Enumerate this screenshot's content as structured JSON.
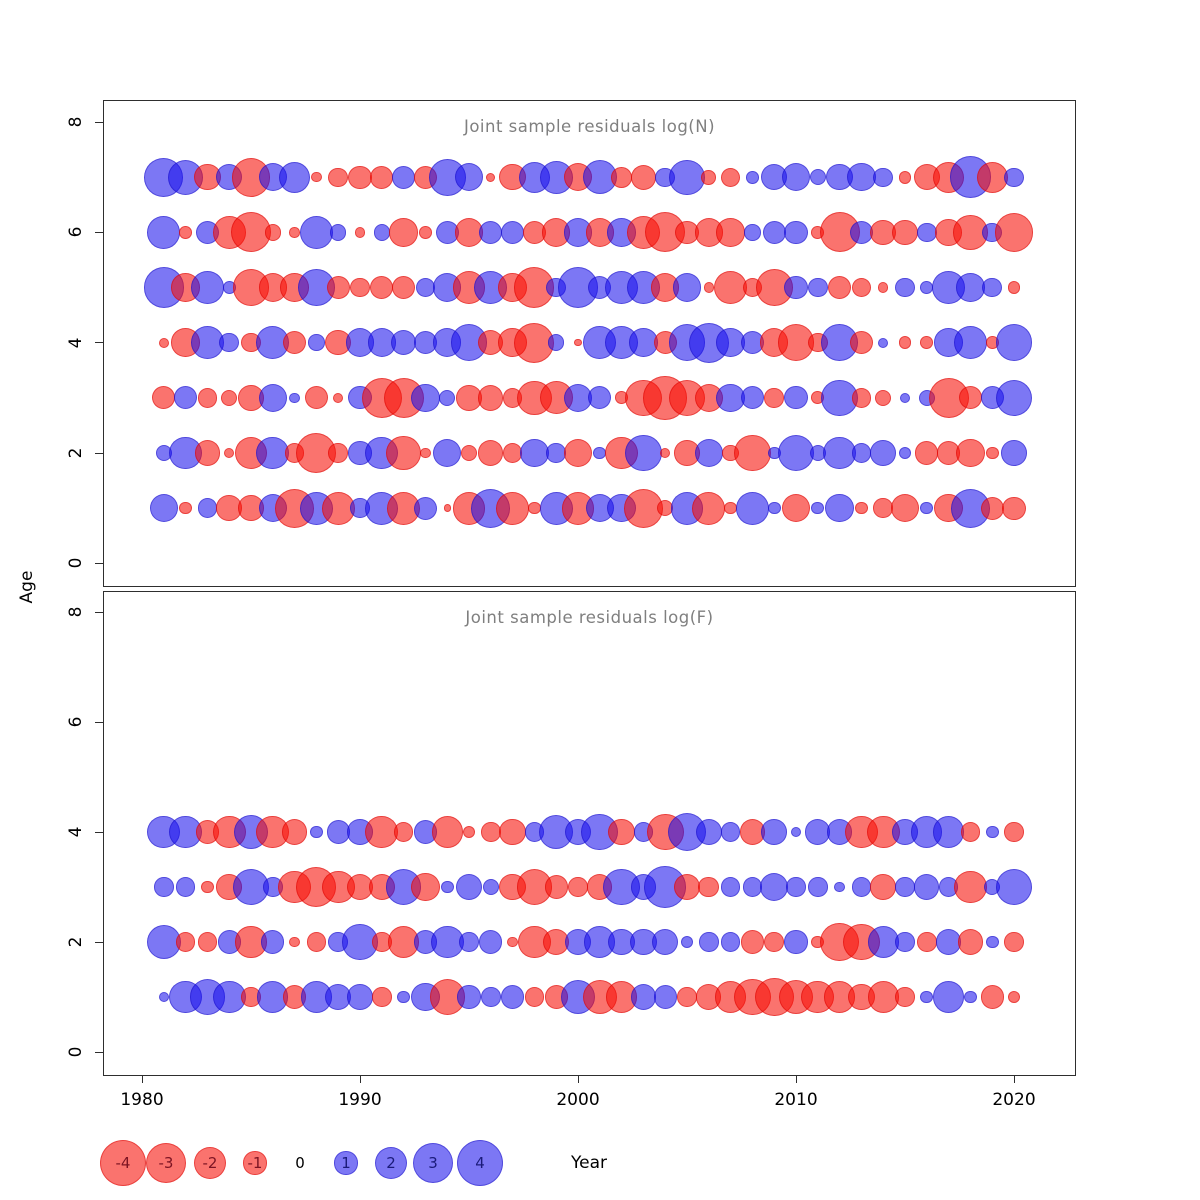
{
  "figure_titles": {
    "top": "Joint sample residuals log(N)",
    "bottom": "Joint sample residuals log(F)"
  },
  "axes": {
    "x": {
      "label": "Year",
      "ticks": [
        1980,
        1990,
        2000,
        2010,
        2020
      ]
    },
    "y": {
      "label": "Age",
      "ticks": [
        0,
        2,
        4,
        6,
        8
      ]
    }
  },
  "legend": {
    "values": [
      -4,
      -3,
      -2,
      -1,
      0,
      1,
      2,
      3,
      4
    ],
    "labels": [
      "-4",
      "-3",
      "-2",
      "-1",
      "0",
      "1",
      "2",
      "3",
      "4"
    ]
  },
  "colors": {
    "negative_fill": "rgba(247,13,5,0.58)",
    "negative_rim": "rgba(214,0,0,0.45)",
    "negative_text": "#7c1423",
    "positive_fill": "rgba(25,15,235,0.57)",
    "positive_rim": "rgba(25,16,192,0.45)",
    "positive_text": "#1b1b7a",
    "title_text": "#7f7f7f",
    "axis_text": "#000000"
  },
  "chart_data": [
    {
      "type": "scatter",
      "subtype": "bubble-residuals",
      "title": "Joint sample residuals log(N)",
      "xlabel": "Year",
      "ylabel": "Age",
      "ylim": [
        0,
        8
      ],
      "xlim": [
        1978,
        2022
      ],
      "grid": false,
      "encoding": "circle area = |residual|, red = negative, blue = positive",
      "x": [
        1981,
        1982,
        1983,
        1984,
        1985,
        1986,
        1987,
        1988,
        1989,
        1990,
        1991,
        1992,
        1993,
        1994,
        1995,
        1996,
        1997,
        1998,
        1999,
        2000,
        2001,
        2002,
        2003,
        2004,
        2005,
        2006,
        2007,
        2008,
        2009,
        2010,
        2011,
        2012,
        2013,
        2014,
        2015,
        2016,
        2017,
        2018,
        2019,
        2020
      ],
      "series": [
        {
          "name": "age 7",
          "age": 7,
          "values": [
            2.8,
            2.3,
            -1.3,
            1.3,
            -2.8,
            1.5,
            1.8,
            -0.2,
            -0.7,
            -1,
            -1,
            1,
            -1,
            2.5,
            1.5,
            -0.15,
            -1.3,
            1.8,
            2,
            -1.5,
            2.2,
            -0.8,
            -1.2,
            0.7,
            2.3,
            -0.4,
            -0.7,
            0.3,
            1.3,
            1.5,
            0.5,
            1.3,
            1.5,
            0.7,
            -0.3,
            -1.3,
            -1.8,
            3.2,
            -1.8,
            0.7
          ]
        },
        {
          "name": "age 6",
          "age": 6,
          "values": [
            2,
            -0.3,
            1,
            -2,
            -3,
            -0.5,
            -0.2,
            2,
            0.5,
            -0.2,
            0.5,
            -1.5,
            -0.3,
            1,
            -1.5,
            1,
            1,
            -1,
            -1.5,
            1.5,
            -1.5,
            1.5,
            -2,
            -3,
            -1,
            -1.5,
            -1.5,
            0.5,
            1,
            1,
            -0.3,
            -3,
            1,
            -1.2,
            -1.2,
            0.7,
            -1.3,
            -2.2,
            0.7,
            -2.8
          ]
        },
        {
          "name": "age 5",
          "age": 5,
          "values": [
            3,
            -1.5,
            2,
            0.3,
            -2.5,
            -1.5,
            -1.5,
            2.5,
            -1,
            -0.7,
            -1,
            -1,
            0.7,
            1.5,
            -2,
            2,
            -1.5,
            -3,
            0.7,
            3,
            1,
            2,
            2,
            -1.5,
            1.5,
            -0.2,
            -2,
            -0.7,
            -2.5,
            1,
            0.7,
            -1,
            -0.7,
            -0.2,
            0.7,
            0.3,
            2,
            1.5,
            0.7,
            -0.3
          ]
        },
        {
          "name": "age 4",
          "age": 4,
          "values": [
            -0.2,
            -1.5,
            2,
            0.7,
            -0.7,
            2,
            -1,
            0.5,
            -1.2,
            1.5,
            1.5,
            1.2,
            1,
            1.5,
            2.5,
            -1.2,
            -1.5,
            -3,
            0.5,
            -0.1,
            2,
            2,
            1.5,
            -1,
            2.5,
            3,
            1.5,
            1,
            -1.5,
            -2.5,
            -0.7,
            2.5,
            -1,
            0.2,
            -0.3,
            -0.3,
            1.5,
            2,
            -0.3,
            2.5
          ]
        },
        {
          "name": "age 3",
          "age": 3,
          "values": [
            -1,
            1,
            -0.7,
            -0.5,
            -1.2,
            1.5,
            0.2,
            -1,
            -0.2,
            1,
            -3,
            -3,
            1.5,
            0.5,
            -1.2,
            -1.2,
            -0.7,
            -2.2,
            -2,
            1.5,
            1,
            -0.3,
            -2.5,
            -3.5,
            -2.5,
            -1.5,
            1.5,
            1,
            -0.7,
            1,
            -0.3,
            2.5,
            -0.7,
            -0.5,
            0.2,
            0.5,
            -3,
            -1,
            1,
            2.5
          ]
        },
        {
          "name": "age 2",
          "age": 2,
          "values": [
            0.5,
            2,
            -1.2,
            -0.2,
            -2,
            2,
            -0.7,
            -3,
            -0.7,
            1,
            2,
            -2.2,
            -0.2,
            1.5,
            -0.5,
            -1.2,
            -0.7,
            1.5,
            0.7,
            -1.5,
            0.3,
            -2,
            2.5,
            -0.2,
            -1.2,
            1.5,
            -0.5,
            -2.5,
            0.3,
            2.5,
            0.5,
            2,
            0.7,
            1.2,
            0.3,
            -1,
            -1,
            -1.5,
            -0.3,
            1.2
          ]
        },
        {
          "name": "age 1",
          "age": 1,
          "values": [
            1.5,
            -0.3,
            0.7,
            -1.2,
            -1.2,
            1.5,
            -2.8,
            2,
            -2,
            0.7,
            2,
            -2,
            1,
            -0.1,
            -2,
            2.8,
            -2,
            -0.3,
            2,
            -2,
            1.5,
            1.5,
            -2.8,
            -0.5,
            2,
            -2,
            -0.3,
            2,
            0.3,
            -1.5,
            0.3,
            1.5,
            -0.3,
            -0.7,
            -1.5,
            0.3,
            -1.5,
            2.8,
            -1,
            -1
          ]
        }
      ]
    },
    {
      "type": "scatter",
      "subtype": "bubble-residuals",
      "title": "Joint sample residuals log(F)",
      "xlabel": "Year",
      "ylabel": "Age",
      "ylim": [
        0,
        8
      ],
      "xlim": [
        1978,
        2022
      ],
      "grid": false,
      "encoding": "circle area = |residual|, red = negative, blue = positive",
      "x": [
        1981,
        1982,
        1983,
        1984,
        1985,
        1986,
        1987,
        1988,
        1989,
        1990,
        1991,
        1992,
        1993,
        1994,
        1995,
        1996,
        1997,
        1998,
        1999,
        2000,
        2001,
        2002,
        2003,
        2004,
        2005,
        2006,
        2007,
        2008,
        2009,
        2010,
        2011,
        2012,
        2013,
        2014,
        2015,
        2016,
        2017,
        2018,
        2019,
        2020
      ],
      "series": [
        {
          "name": "age 4",
          "age": 4,
          "values": [
            2,
            2,
            -1,
            -2,
            2.2,
            -2,
            -1.2,
            0.3,
            1,
            1.2,
            -2,
            -0.7,
            1,
            -1.8,
            -0.3,
            -0.7,
            -1.3,
            0.7,
            2.2,
            1.3,
            2.5,
            -1.3,
            0.7,
            -2.5,
            2.8,
            1.3,
            0.7,
            -1.2,
            1.2,
            0.2,
            1.2,
            1.2,
            -2,
            -2,
            1.2,
            1.8,
            1.8,
            -0.7,
            0.3,
            -0.7
          ]
        },
        {
          "name": "age 3",
          "age": 3,
          "values": [
            0.7,
            0.7,
            -0.3,
            -1.2,
            2.5,
            0.7,
            -2,
            -3,
            -2,
            -1.3,
            -1.3,
            2.3,
            -1.5,
            0.3,
            1.3,
            0.5,
            -1.3,
            -2.3,
            -1,
            -0.7,
            -1.2,
            2.5,
            1.2,
            3.2,
            -1.3,
            -0.8,
            0.7,
            0.7,
            1.5,
            0.7,
            0.7,
            0.2,
            0.7,
            -1.2,
            0.7,
            1.2,
            0.7,
            -2,
            0.5,
            2.5
          ]
        },
        {
          "name": "age 2",
          "age": 2,
          "values": [
            2.2,
            -0.7,
            -0.7,
            1,
            -1.8,
            1,
            -0.2,
            -0.7,
            0.7,
            2.3,
            -0.7,
            -1.8,
            1,
            2,
            0.7,
            1,
            -0.2,
            -2,
            -1.3,
            1.3,
            1.8,
            1.3,
            1.3,
            1.3,
            0.3,
            0.7,
            0.7,
            -1,
            -0.7,
            1,
            -0.3,
            -2.8,
            -2.5,
            1.8,
            0.7,
            -0.7,
            1.2,
            -1.2,
            0.3,
            -0.7
          ]
        },
        {
          "name": "age 1",
          "age": 1,
          "values": [
            0.2,
            2,
            2.3,
            2,
            -0.7,
            1.8,
            -1,
            1.8,
            1.3,
            1.2,
            -0.7,
            0.3,
            1.5,
            -2.3,
            1,
            0.7,
            1,
            -0.7,
            -1,
            2.2,
            -2.2,
            -1.8,
            1.2,
            1,
            -0.7,
            -1.2,
            -1.8,
            -2.5,
            -2.8,
            -2.2,
            -2,
            -1.8,
            -1.3,
            -1.8,
            -0.7,
            0.3,
            1.8,
            0.3,
            -1,
            -0.3
          ]
        }
      ]
    }
  ]
}
